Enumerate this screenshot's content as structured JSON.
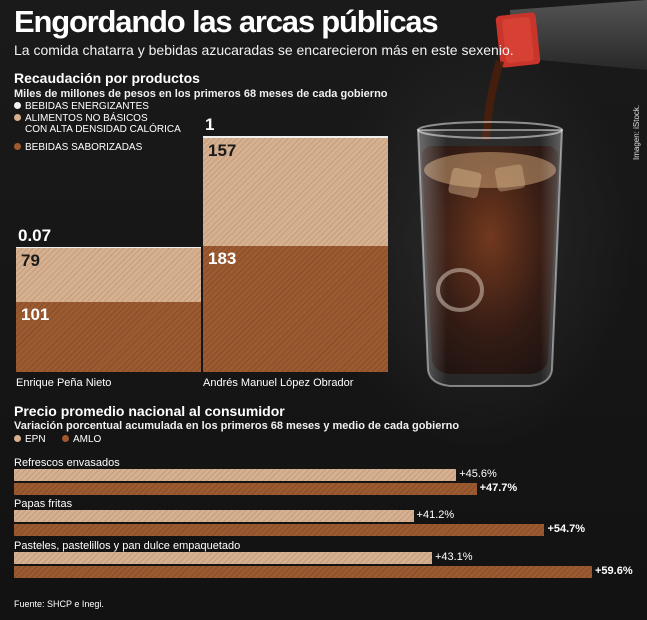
{
  "header": {
    "title": "Engordando las arcas públicas",
    "subtitle": "La comida chatarra y bebidas azucaradas se encarecieron más en este sexenio."
  },
  "section1": {
    "title": "Recaudación por productos",
    "subtitle": "Miles de millones de pesos en los primeros 68 meses de cada gobierno"
  },
  "section2": {
    "title": "Precio promedio nacional al consumidor",
    "subtitle": "Variación porcentual acumulada en los primeros 68 meses y medio de cada gobierno"
  },
  "photo_credit": "Imagen: iStock.",
  "source": "Fuente: SHCP e Inegi.",
  "chart_data": [
    {
      "type": "bar",
      "stacked": true,
      "categories": [
        "Enrique Peña Nieto",
        "Andrés Manuel López Obrador"
      ],
      "series": [
        {
          "name": "BEBIDAS SABORIZADAS",
          "values": [
            101,
            183
          ],
          "value_labels": [
            "101",
            "183"
          ],
          "color": "#9c5a30"
        },
        {
          "name": "ALIMENTOS NO BÁSICOS\nCON ALTA DENSIDAD CALÓRICA",
          "values": [
            79,
            157
          ],
          "value_labels": [
            "79",
            "157"
          ],
          "color": "#d7b08f"
        },
        {
          "name": "BEBIDAS ENERGIZANTES",
          "values": [
            0.07,
            1
          ],
          "value_labels": [
            "0.07",
            "1"
          ],
          "color": "#efefef"
        }
      ],
      "legend_order": [
        "BEBIDAS ENERGIZANTES",
        "ALIMENTOS NO BÁSICOS\nCON ALTA DENSIDAD CALÓRICA",
        "BEBIDAS SABORIZADAS"
      ],
      "legend_placement": "top-left",
      "grid": false
    },
    {
      "type": "bar",
      "orientation": "horizontal",
      "categories": [
        "Refrescos envasados",
        "Papas fritas",
        "Pasteles, pastelillos y pan dulce empaquetado"
      ],
      "series": [
        {
          "name": "EPN",
          "values": [
            45.6,
            41.2,
            43.1
          ],
          "value_labels": [
            "+45.6%",
            "+41.2%",
            "+43.1%"
          ],
          "color": "#d7b08f"
        },
        {
          "name": "AMLO",
          "values": [
            47.7,
            54.7,
            59.6
          ],
          "value_labels": [
            "+47.7%",
            "+54.7%",
            "+59.6%"
          ],
          "color": "#9c5a30"
        }
      ],
      "legend_placement": "top-left",
      "grid": false
    }
  ]
}
